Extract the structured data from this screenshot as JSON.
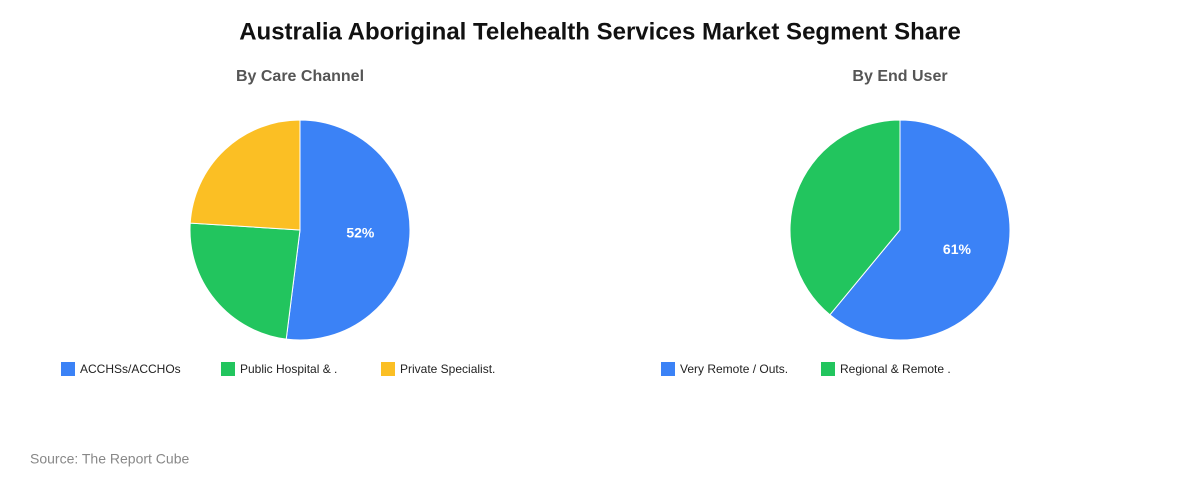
{
  "title": "Australia Aboriginal Telehealth Services Market Segment Share",
  "source": "Source: The Report Cube",
  "chart_data": [
    {
      "type": "pie",
      "subtitle": "By Care Channel",
      "categories": [
        "ACCHSs/ACCHOs",
        "Public Hospital & .",
        "Private Specialist."
      ],
      "values": [
        52,
        24,
        24
      ],
      "value_labels": [
        "52%",
        null,
        null
      ],
      "colors": [
        "#3b82f6",
        "#22c55e",
        "#fbbf24"
      ]
    },
    {
      "type": "pie",
      "subtitle": "By End User",
      "categories": [
        "Very Remote / Outs.",
        "Regional & Remote ."
      ],
      "values": [
        61,
        39
      ],
      "value_labels": [
        "61%",
        null
      ],
      "colors": [
        "#3b82f6",
        "#22c55e"
      ]
    }
  ]
}
